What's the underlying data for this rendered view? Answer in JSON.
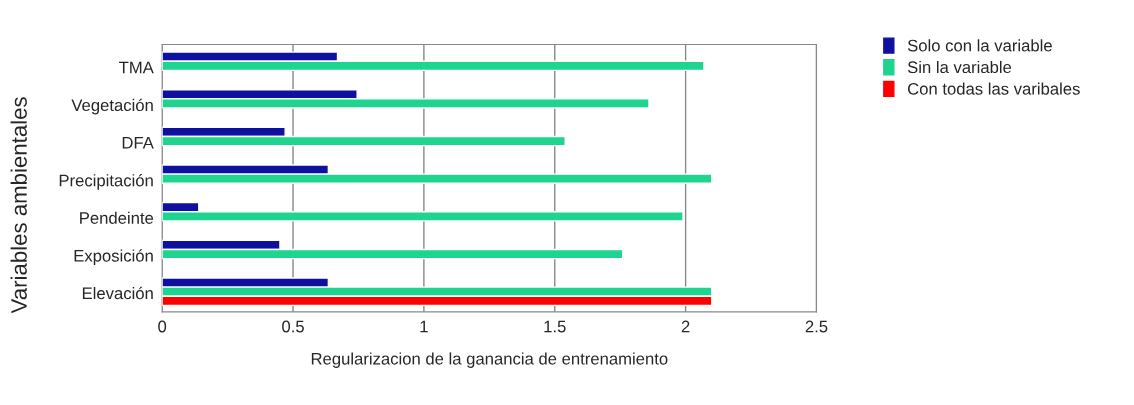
{
  "chart_data": {
    "type": "bar",
    "orientation": "horizontal",
    "xlabel": "Regularizacion de la ganancia de entrenamiento",
    "ylabel": "Variables ambientales",
    "categories": [
      "TMA",
      "Vegetación",
      "DFA",
      "Precipitación",
      "Pendeinte",
      "Exposición",
      "Elevación"
    ],
    "series": [
      {
        "name": "Solo con la variable",
        "color": "#1010a0",
        "values": [
          0.67,
          0.745,
          0.47,
          0.635,
          0.14,
          0.45,
          0.635
        ]
      },
      {
        "name": "Sin la variable",
        "color": "#1ed48e",
        "values": [
          2.07,
          1.86,
          1.54,
          2.1,
          1.99,
          1.76,
          2.1
        ]
      },
      {
        "name": "Con todas las varibales",
        "color": "#ff0000",
        "values": [
          null,
          null,
          null,
          null,
          null,
          null,
          2.1
        ]
      }
    ],
    "xlim": [
      0,
      2.5
    ],
    "xticks": [
      0,
      0.5,
      1,
      1.5,
      2,
      2.5
    ],
    "grid": "x",
    "legend": "top right"
  }
}
